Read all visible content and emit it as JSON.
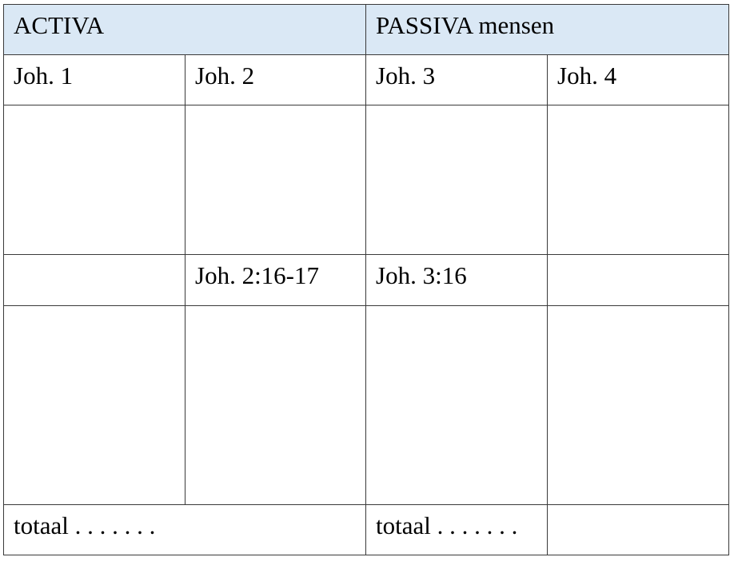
{
  "header": {
    "activa": "ACTIVA",
    "passiva": "PASSIVA mensen"
  },
  "columns": [
    "Joh. 1",
    "Joh. 2",
    "Joh. 3",
    "Joh. 4"
  ],
  "references": {
    "joh2": "Joh. 2:16-17",
    "joh3": "Joh. 3:16"
  },
  "totals": {
    "activa": "totaal . . . . . . .",
    "passiva": "totaal . . . . . . ."
  }
}
